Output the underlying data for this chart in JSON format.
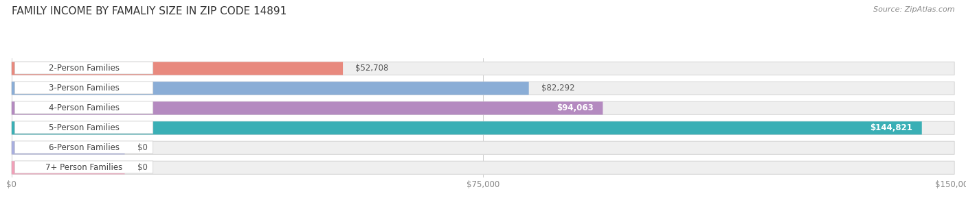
{
  "title": "FAMILY INCOME BY FAMALIY SIZE IN ZIP CODE 14891",
  "source": "Source: ZipAtlas.com",
  "categories": [
    "2-Person Families",
    "3-Person Families",
    "4-Person Families",
    "5-Person Families",
    "6-Person Families",
    "7+ Person Families"
  ],
  "values": [
    52708,
    82292,
    94063,
    144821,
    0,
    0
  ],
  "bar_colors": [
    "#E8897E",
    "#8AADD6",
    "#B48AC0",
    "#3AAFB5",
    "#A8AEDE",
    "#F0A0B8"
  ],
  "bar_bg_colors": [
    "#EEEEEE",
    "#EEEEEE",
    "#EEEEEE",
    "#EEEEEE",
    "#EEEEEE",
    "#EEEEEE"
  ],
  "row_bg_colors": [
    "#F0F0F0",
    "#F0F0F0",
    "#F0F0F0",
    "#F0F0F0",
    "#F0F0F0",
    "#F0F0F0"
  ],
  "xlim": [
    0,
    150000
  ],
  "xticks": [
    0,
    75000,
    150000
  ],
  "xticklabels": [
    "$0",
    "$75,000",
    "$150,000"
  ],
  "value_labels": [
    "$52,708",
    "$82,292",
    "$94,063",
    "$144,821",
    "$0",
    "$0"
  ],
  "value_label_inside": [
    false,
    false,
    true,
    true,
    false,
    false
  ],
  "value_label_colors_inside": [
    "#555555",
    "#555555",
    "#ffffff",
    "#ffffff",
    "#555555",
    "#555555"
  ],
  "background_color": "#ffffff",
  "title_fontsize": 11,
  "label_fontsize": 8.5,
  "value_fontsize": 8.5,
  "zero_bar_width": 18000
}
